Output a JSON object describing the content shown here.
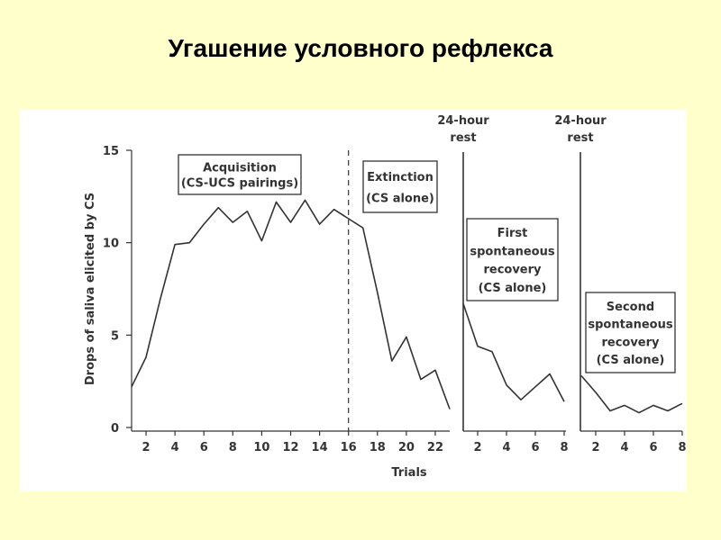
{
  "title": "Угашение условного рефлекса",
  "chart_data": {
    "type": "line",
    "ylabel": "Drops of saliva elicited by CS",
    "xlabel": "Trials",
    "ylim": [
      0,
      15
    ],
    "y_ticks": [
      "0",
      "5",
      "10",
      "15"
    ],
    "grid": false,
    "panels": [
      {
        "x_ticks": [
          "2",
          "4",
          "6",
          "8",
          "10",
          "12",
          "14",
          "16",
          "18",
          "20",
          "22"
        ],
        "xlim": [
          1,
          23
        ],
        "series": [
          {
            "x": [
              1,
              2,
              3,
              4,
              5,
              6,
              7,
              8,
              9,
              10,
              11,
              12,
              13,
              14,
              15,
              16,
              17,
              18,
              19,
              20,
              21,
              22,
              23
            ],
            "values": [
              2.2,
              3.8,
              7.0,
              9.9,
              10.0,
              11.0,
              11.9,
              11.1,
              11.7,
              10.1,
              12.2,
              11.1,
              12.3,
              11.0,
              11.8,
              11.3,
              10.8,
              7.3,
              3.6,
              4.9,
              2.6,
              3.1,
              1.0
            ]
          }
        ],
        "annotations": [
          {
            "lines": [
              "Acquisition",
              "(CS-UCS pairings)"
            ]
          },
          {
            "lines": [
              "Extinction",
              "(CS alone)"
            ]
          }
        ],
        "divider_x": 16
      },
      {
        "x_ticks": [
          "2",
          "4",
          "6",
          "8"
        ],
        "xlim": [
          1,
          8
        ],
        "rest_label": [
          "24-hour",
          "rest"
        ],
        "series": [
          {
            "x": [
              1,
              2,
              3,
              4,
              5,
              6,
              7,
              8
            ],
            "values": [
              6.7,
              4.4,
              4.1,
              2.3,
              1.5,
              2.2,
              2.9,
              1.4
            ]
          }
        ],
        "annotations": [
          {
            "lines": [
              "First",
              "spontaneous",
              "recovery",
              "(CS alone)"
            ]
          }
        ]
      },
      {
        "x_ticks": [
          "2",
          "4",
          "6",
          "8"
        ],
        "xlim": [
          1,
          8
        ],
        "rest_label": [
          "24-hour",
          "rest"
        ],
        "series": [
          {
            "x": [
              1,
              2,
              3,
              4,
              5,
              6,
              7,
              8
            ],
            "values": [
              2.8,
              1.9,
              0.9,
              1.2,
              0.8,
              1.2,
              0.9,
              1.3
            ]
          }
        ],
        "annotations": [
          {
            "lines": [
              "Second",
              "spontaneous",
              "recovery",
              "(CS alone)"
            ]
          }
        ]
      }
    ]
  }
}
